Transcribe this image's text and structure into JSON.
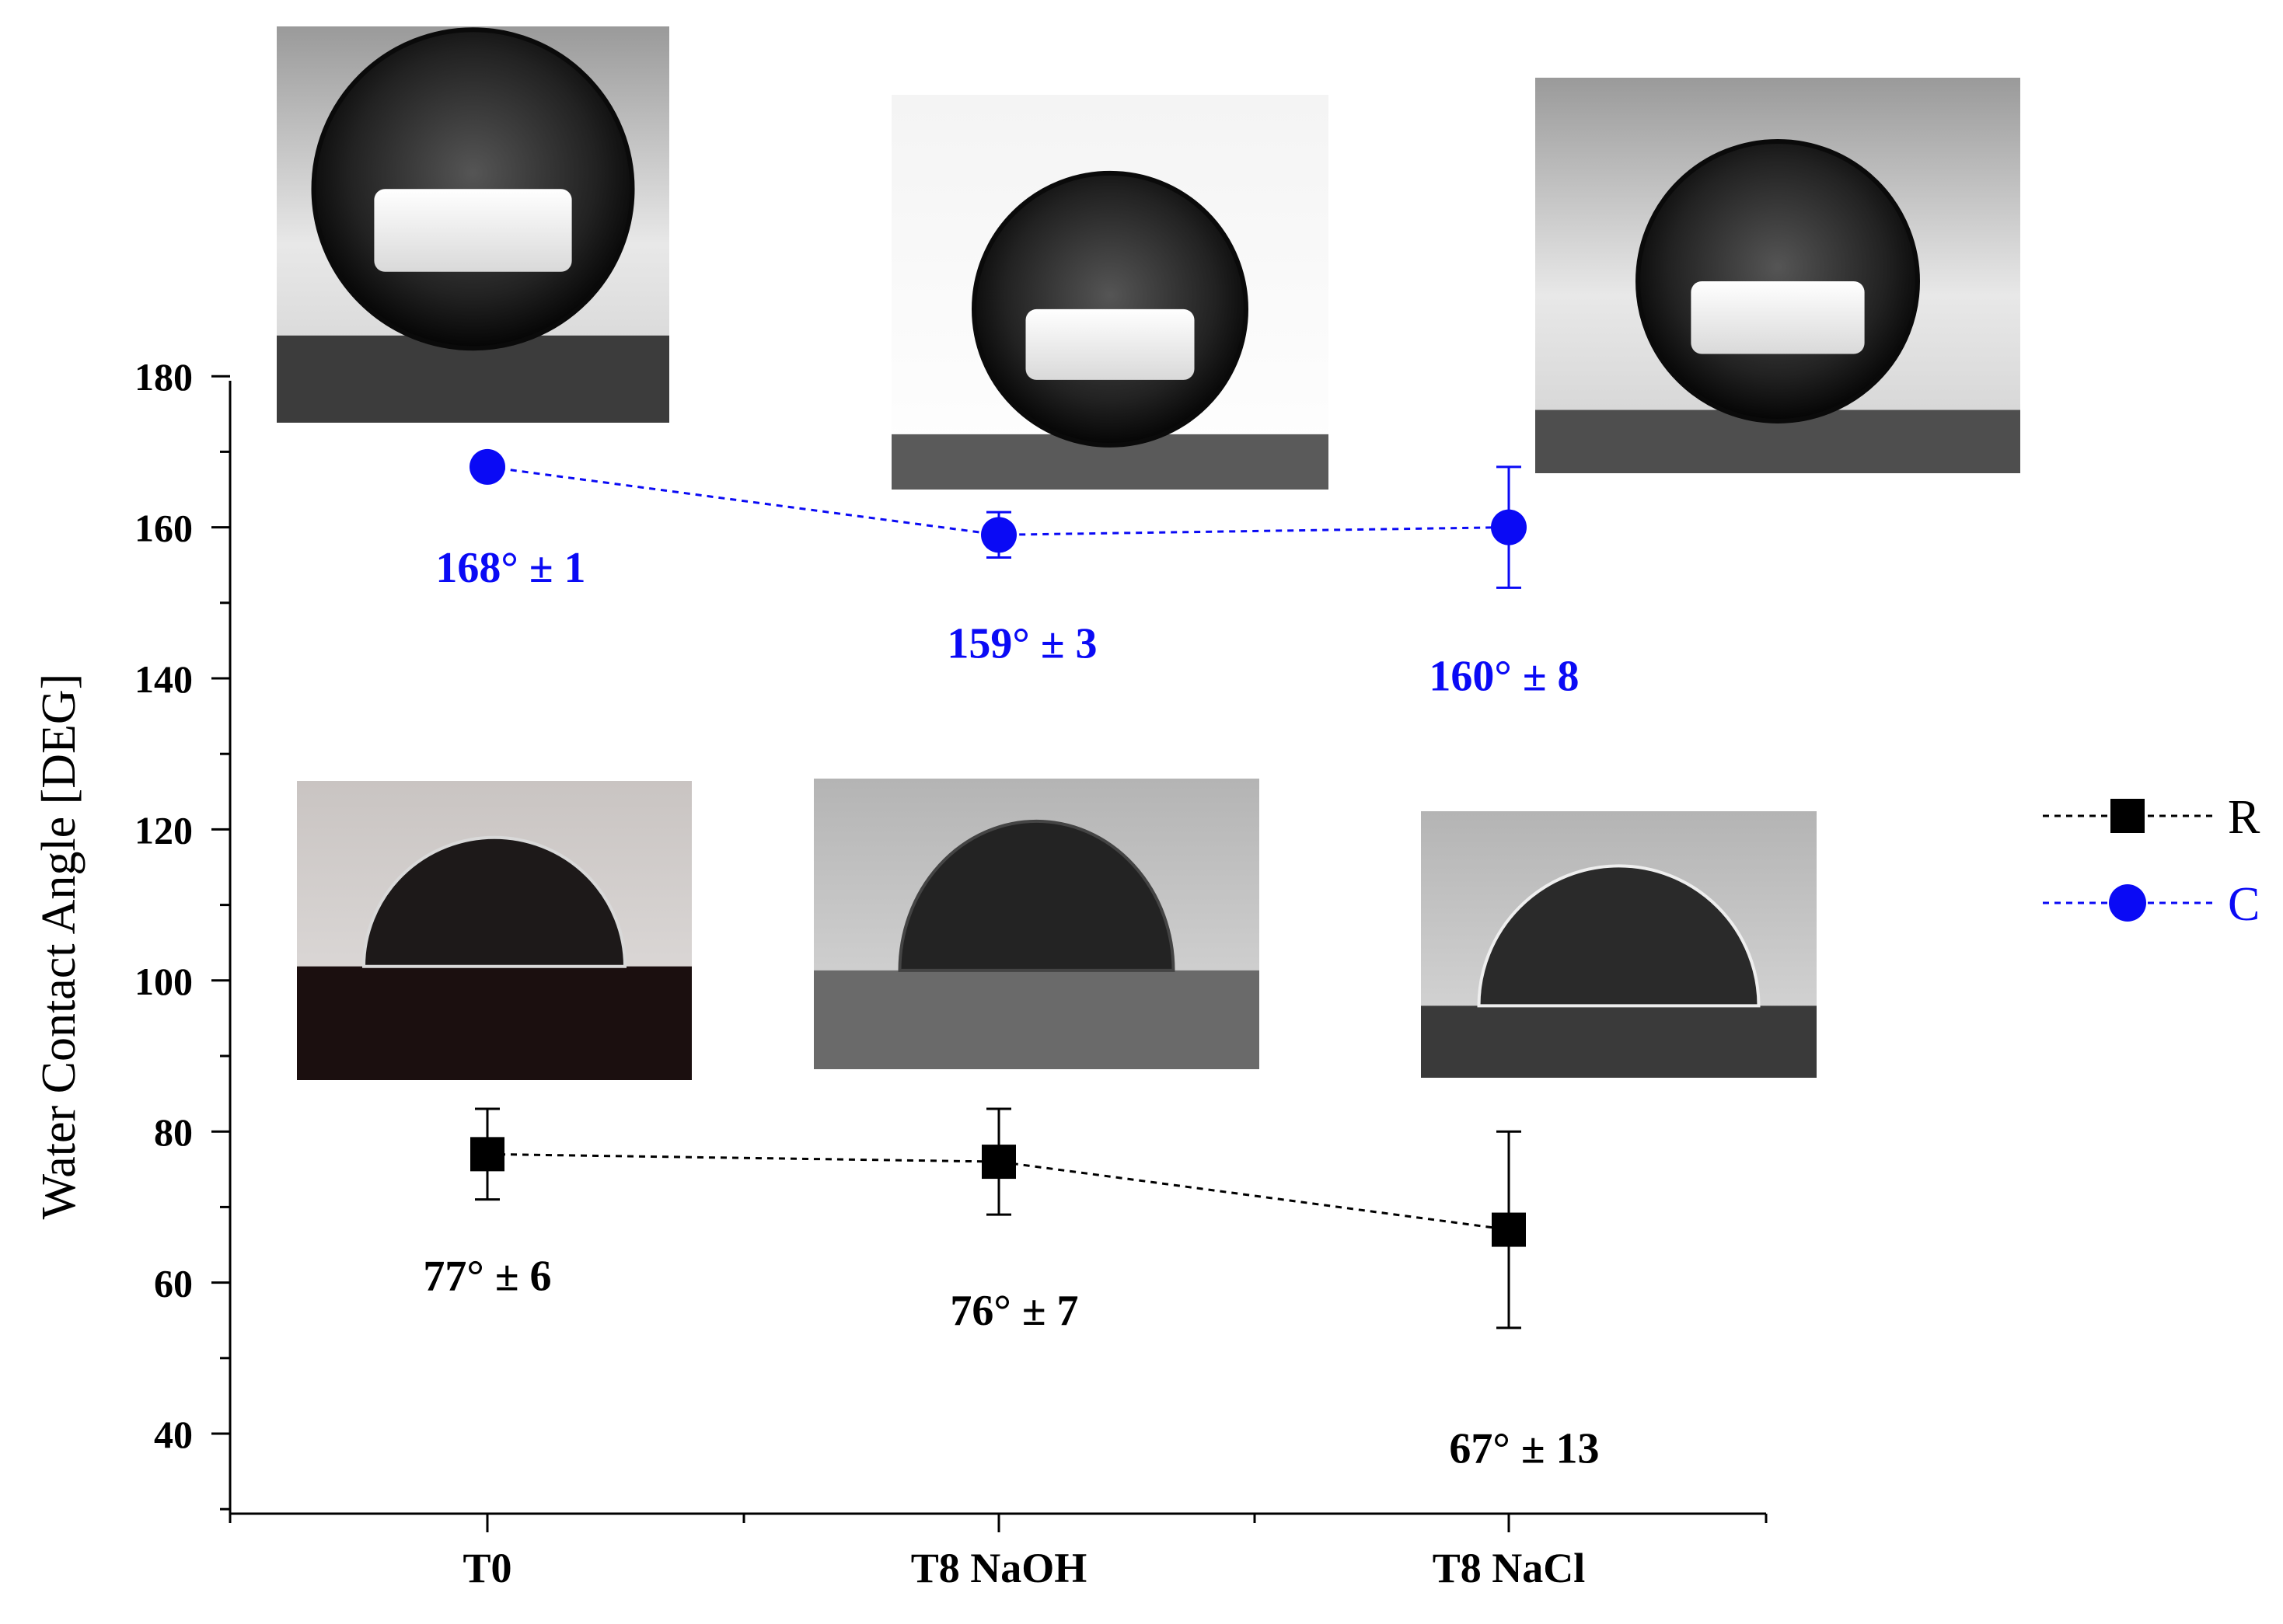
{
  "chart_data": {
    "type": "scatter",
    "ylabel": "Water Contact Angle [DEG]",
    "xlabel": "",
    "categories": [
      "T0",
      "T8 NaOH",
      "T8 NaCl"
    ],
    "ylim": [
      30,
      181
    ],
    "yticks": [
      40,
      60,
      80,
      100,
      120,
      140,
      160,
      180
    ],
    "grid": false,
    "legend_position": "right",
    "series": [
      {
        "name": "R",
        "marker": "square",
        "color": "#000000",
        "values": [
          77,
          76,
          67
        ],
        "errors": [
          6,
          7,
          13
        ],
        "labels": [
          "77° ± 6",
          "76° ± 7",
          "67° ± 13"
        ]
      },
      {
        "name": "C",
        "marker": "circle",
        "color": "#0a0af5",
        "values": [
          168,
          159,
          160
        ],
        "errors": [
          1,
          3,
          8
        ],
        "labels": [
          "168° ± 1",
          "159° ± 3",
          "160° ± 8"
        ]
      }
    ]
  }
}
